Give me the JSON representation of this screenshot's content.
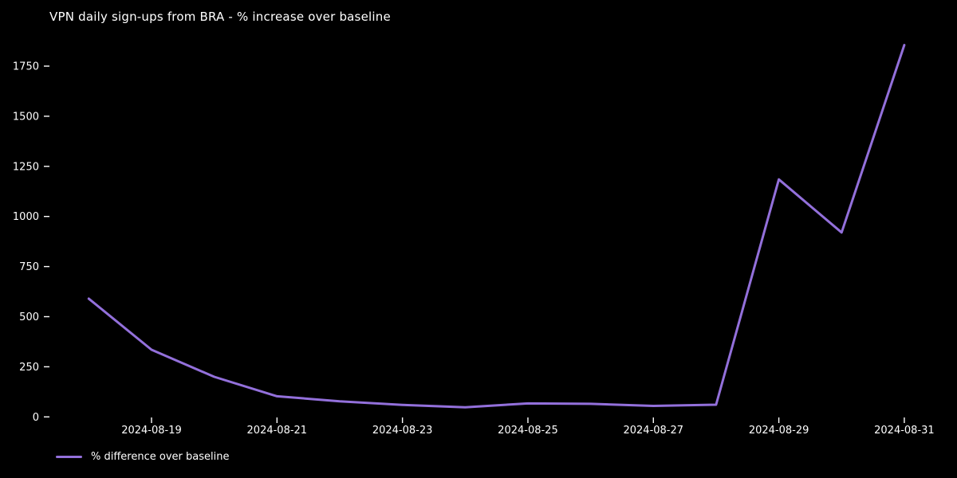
{
  "title": "VPN daily sign-ups from BRA - % increase over baseline",
  "legend": {
    "label": "% difference over baseline"
  },
  "colors": {
    "background": "#000000",
    "text": "#ffffff",
    "line": "#9370db"
  },
  "chart_data": {
    "type": "line",
    "title": "VPN daily sign-ups from BRA - % increase over baseline",
    "xlabel": "",
    "ylabel": "",
    "x": [
      "2024-08-18",
      "2024-08-19",
      "2024-08-20",
      "2024-08-21",
      "2024-08-22",
      "2024-08-23",
      "2024-08-24",
      "2024-08-25",
      "2024-08-26",
      "2024-08-27",
      "2024-08-28",
      "2024-08-29",
      "2024-08-30",
      "2024-08-31"
    ],
    "series": [
      {
        "name": "% difference over baseline",
        "color": "#9370db",
        "values": [
          590,
          335,
          200,
          103,
          78,
          60,
          48,
          67,
          65,
          55,
          61,
          1185,
          920,
          1855
        ]
      }
    ],
    "x_tick_labels": [
      "2024-08-19",
      "2024-08-21",
      "2024-08-23",
      "2024-08-25",
      "2024-08-27",
      "2024-08-29",
      "2024-08-31"
    ],
    "y_ticks": [
      0,
      250,
      500,
      750,
      1000,
      1250,
      1500,
      1750
    ],
    "ylim": [
      0,
      1860
    ],
    "grid": false,
    "legend_position": "lower-left"
  }
}
